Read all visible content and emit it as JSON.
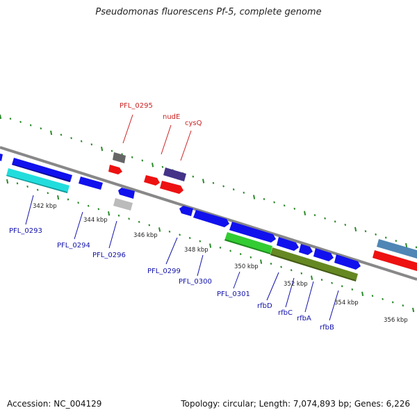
{
  "title": "Pseudomonas fluorescens Pf-5, complete genome",
  "accession": "Accession: NC_004129",
  "topology": "Topology: circular; Length: 7,074,893 bp; Genes: 6,226",
  "colors": {
    "forward_gene": "#1111ee",
    "red_gene": "#ee1111",
    "gray_gene": "#666666",
    "lightgray_gene": "#bbbbbb",
    "purple_gene": "#443388",
    "cyan_gene": "#22dddd",
    "green_gene": "#33cc33",
    "olive_gene": "#668822",
    "steelblue_gene": "#4f86b5",
    "backbone": "#888888",
    "tick_green": "#2a8a2a",
    "label_blue": "#1111aa",
    "label_red": "#cc2222"
  },
  "scale_labels": [
    "342 kbp",
    "344 kbp",
    "346 kbp",
    "348 kbp",
    "350 kbp",
    "352 kbp",
    "354 kbp",
    "356 kbp"
  ],
  "top_labels": [
    "PFL_0295",
    "nudE",
    "cysQ"
  ],
  "bottom_labels": [
    "PFL_0293",
    "PFL_0294",
    "PFL_0296",
    "PFL_0299",
    "PFL_0300",
    "PFL_0301",
    "rfbD",
    "rfbC",
    "rfbA",
    "rfbB"
  ]
}
